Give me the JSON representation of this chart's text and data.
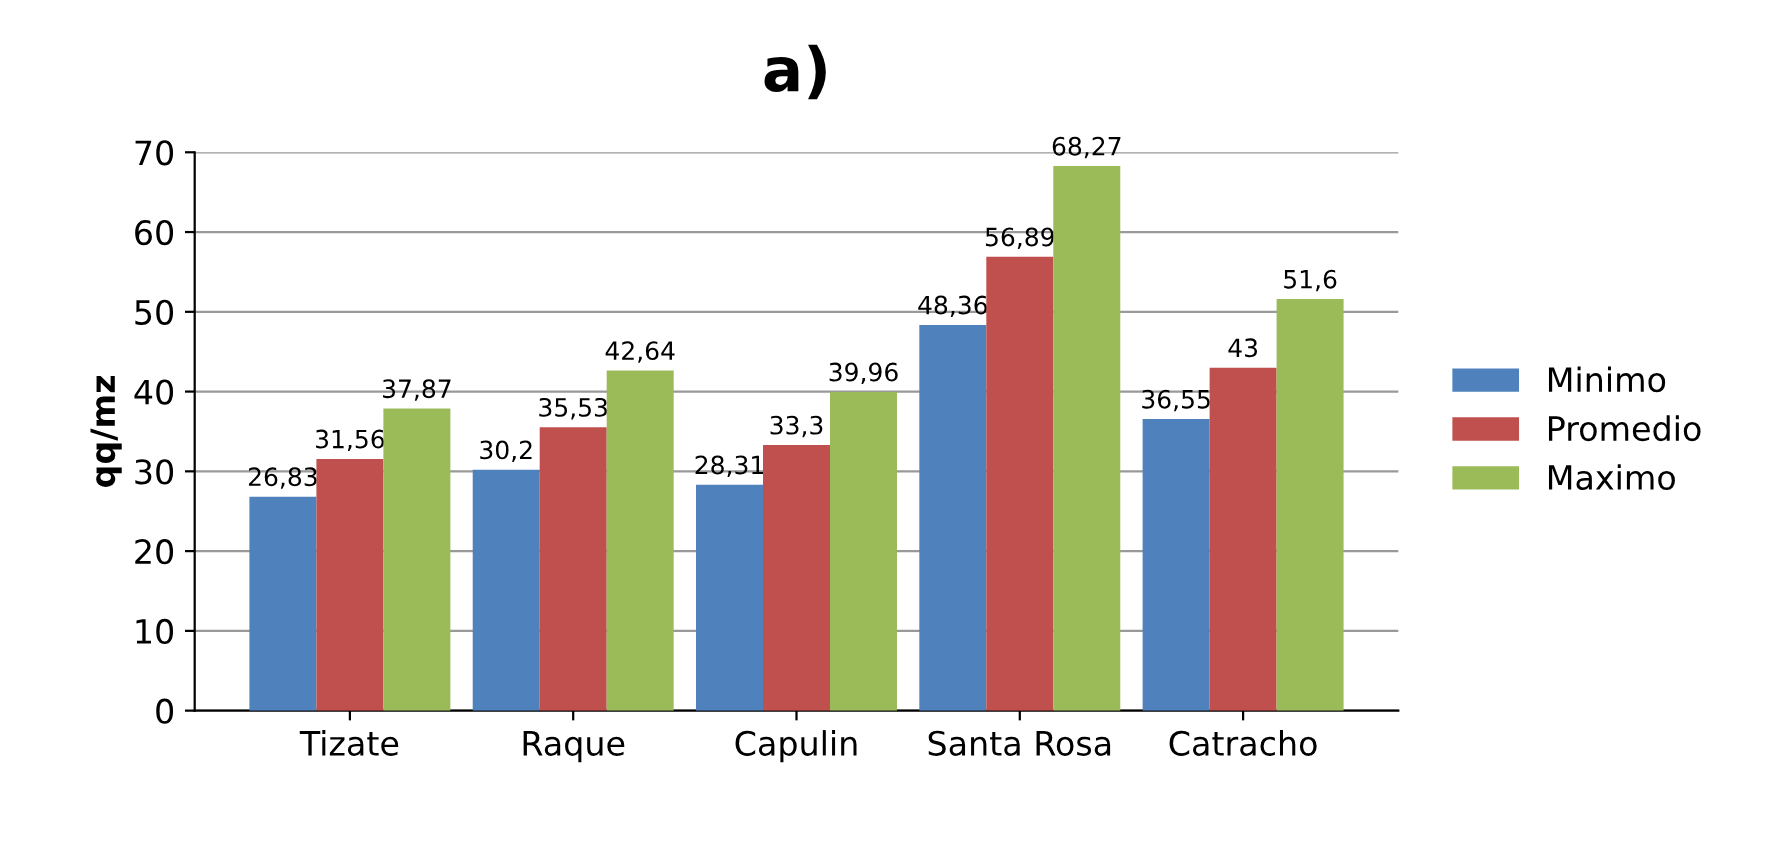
{
  "chart_data": {
    "type": "bar",
    "title": "a)",
    "ylabel": "qq/mz",
    "categories": [
      "Tizate",
      "Raque",
      "Capulin",
      "Santa Rosa",
      "Catracho"
    ],
    "series": [
      {
        "name": "Minimo",
        "color": "#4f81bd",
        "values": [
          26.83,
          30.2,
          28.31,
          48.36,
          36.55
        ],
        "value_labels": [
          "26,83",
          "30,2",
          "28,31",
          "48,36",
          "36,55"
        ]
      },
      {
        "name": "Promedio",
        "color": "#c0504d",
        "values": [
          31.56,
          35.53,
          33.3,
          56.89,
          43
        ],
        "value_labels": [
          "31,56",
          "35,53",
          "33,3",
          "56,89",
          "43"
        ]
      },
      {
        "name": "Maximo",
        "color": "#9bbb59",
        "values": [
          37.87,
          42.64,
          39.96,
          68.27,
          51.6
        ],
        "value_labels": [
          "37,87",
          "42,64",
          "39,96",
          "68,27",
          "51,6"
        ]
      }
    ],
    "ylim": [
      0,
      70
    ],
    "yticks": [
      0,
      10,
      20,
      30,
      40,
      50,
      60,
      70
    ],
    "grid": "y",
    "legend": "right"
  }
}
